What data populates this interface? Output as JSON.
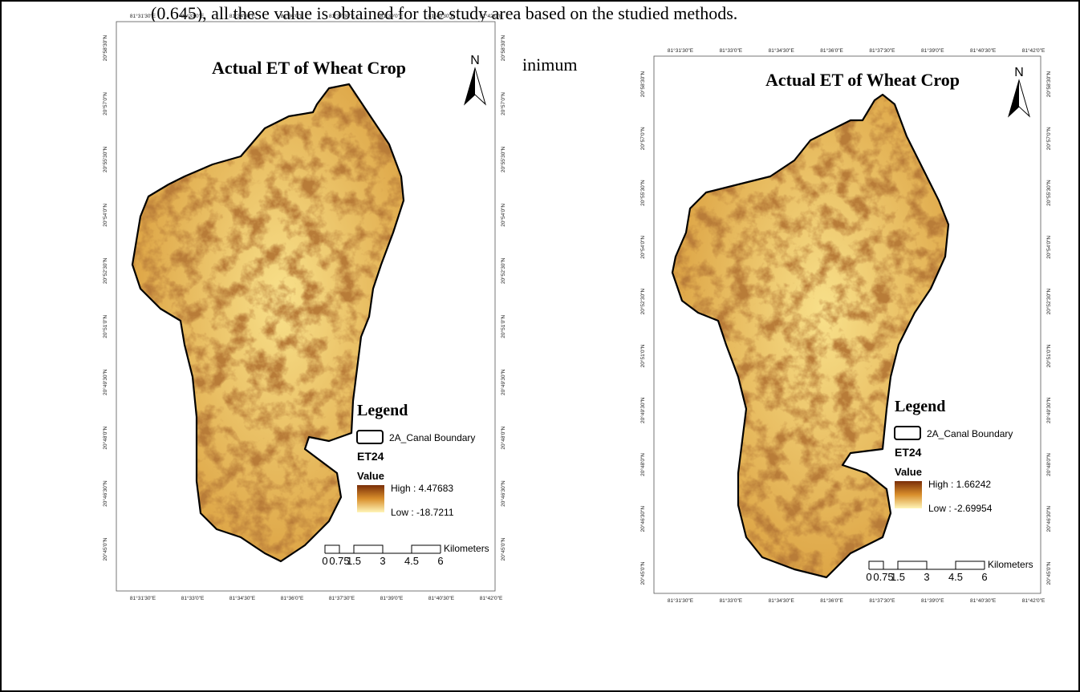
{
  "page_text": {
    "line": "(0.645),  all these value is obtained for the study area based on the studied methods.",
    "fragment": "inimum"
  },
  "maps": [
    {
      "title": "Actual ET of Wheat Crop",
      "north": "N",
      "x_labels": [
        "81°31'30\"E",
        "81°33'0\"E",
        "81°34'30\"E",
        "81°36'0\"E",
        "81°37'30\"E",
        "81°39'0\"E",
        "81°40'30\"E",
        "81°42'0\"E"
      ],
      "y_labels": [
        "20°58'30\"N",
        "20°57'0\"N",
        "20°55'30\"N",
        "20°54'0\"N",
        "20°52'30\"N",
        "20°51'0\"N",
        "20°49'30\"N",
        "20°48'0\"N",
        "20°46'30\"N",
        "20°45'0\"N"
      ],
      "legend": {
        "heading": "Legend",
        "boundary": "2A_Canal Boundary",
        "layer": "ET24",
        "field": "Value",
        "high": "High : 4.47683",
        "low": "Low : -18.7211"
      },
      "scale": {
        "ticks": [
          "0",
          "0.75",
          "1.5",
          "3",
          "4.5",
          "6"
        ],
        "unit": "Kilometers"
      }
    },
    {
      "title": "Actual ET of Wheat Crop",
      "north": "N",
      "x_labels": [
        "81°31'30\"E",
        "81°33'0\"E",
        "81°34'30\"E",
        "81°36'0\"E",
        "81°37'30\"E",
        "81°39'0\"E",
        "81°40'30\"E",
        "81°42'0\"E"
      ],
      "y_labels": [
        "20°58'30\"N",
        "20°57'0\"N",
        "20°55'30\"N",
        "20°54'0\"N",
        "20°52'30\"N",
        "20°51'0\"N",
        "20°49'30\"N",
        "20°48'0\"N",
        "20°46'30\"N",
        "20°45'0\"N"
      ],
      "legend": {
        "heading": "Legend",
        "boundary": "2A_Canal Boundary",
        "layer": "ET24",
        "field": "Value",
        "high": "High : 1.66242",
        "low": "Low : -2.69954"
      },
      "scale": {
        "ticks": [
          "0",
          "0.75",
          "1.5",
          "3",
          "4.5",
          "6"
        ],
        "unit": "Kilometers"
      }
    }
  ]
}
